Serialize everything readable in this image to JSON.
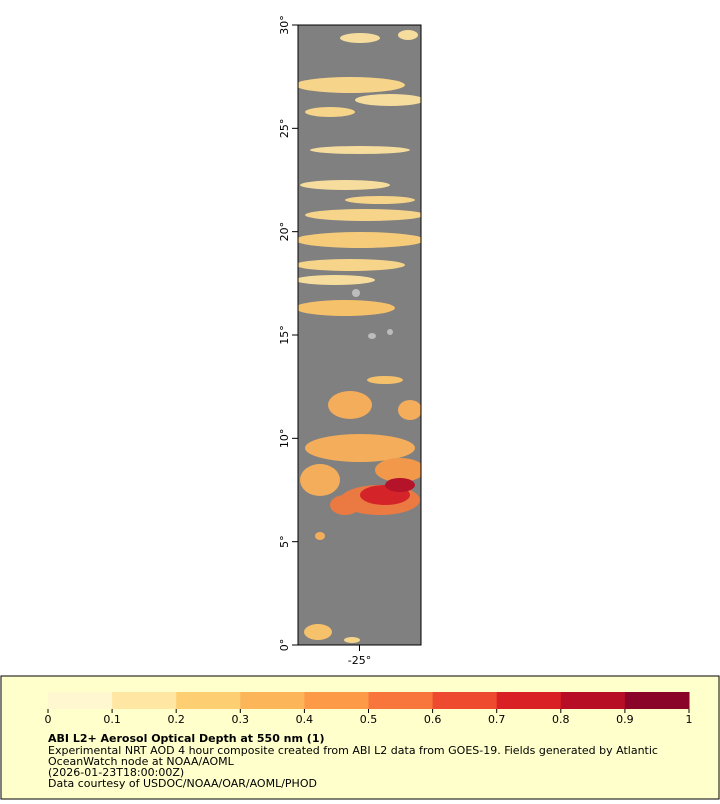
{
  "map": {
    "latlim": [
      0,
      30
    ],
    "lonlim": [
      -28,
      -22
    ],
    "lat_ticks": [
      {
        "value": 0,
        "label": "0°"
      },
      {
        "value": 5,
        "label": "5°"
      },
      {
        "value": 10,
        "label": "10°"
      },
      {
        "value": 15,
        "label": "15°"
      },
      {
        "value": 20,
        "label": "20°"
      },
      {
        "value": 25,
        "label": "25°"
      },
      {
        "value": 30,
        "label": "30°"
      }
    ],
    "lon_ticks": [
      {
        "value": -25,
        "label": "-25°"
      }
    ]
  },
  "colorbar": {
    "range": [
      0,
      1
    ],
    "ticks": [
      0,
      0.1,
      0.2,
      0.3,
      0.4,
      0.5,
      0.6,
      0.7,
      0.8,
      0.9,
      1
    ],
    "colors": [
      "#fff7d0",
      "#ffe6a3",
      "#fecf72",
      "#fdb55a",
      "#fc9a48",
      "#f8753c",
      "#ee4a2f",
      "#d92025",
      "#b70e26",
      "#8a0328"
    ]
  },
  "caption": {
    "title": "ABI L2+ Aerosol Optical Depth at 550 nm (1)",
    "lines": [
      "Experimental NRT AOD 4 hour composite created from ABI L2 data from GOES-19. Fields generated by Atlantic",
      "OceanWatch node at NOAA/AOML",
      "(2026-01-23T18:00:00Z)",
      "Data courtesy of USDOC/NOAA/OAR/AOML/PHOD"
    ]
  }
}
